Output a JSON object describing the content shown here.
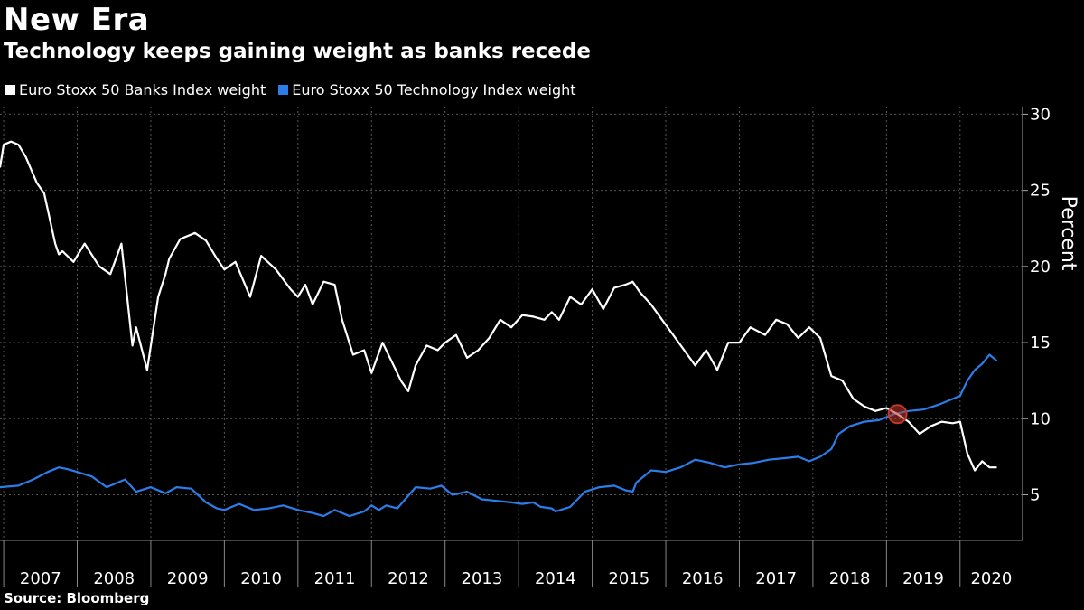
{
  "title": "New Era",
  "subtitle": "Technology keeps gaining weight as banks recede",
  "source": "Source: Bloomberg",
  "chart_data": {
    "type": "line",
    "ylabel": "Percent",
    "ylim": [
      2,
      30.5
    ],
    "yticks": [
      5,
      10,
      15,
      20,
      25,
      30
    ],
    "xlim": [
      2006.95,
      2020.85
    ],
    "xticks": [
      "2007",
      "2008",
      "2009",
      "2010",
      "2011",
      "2012",
      "2013",
      "2014",
      "2015",
      "2016",
      "2017",
      "2018",
      "2019",
      "2020"
    ],
    "grid": true,
    "legend_position": "top-left",
    "highlight": {
      "x": 2019.15,
      "y": 10.3,
      "color": "#c0392b"
    },
    "series": [
      {
        "name": "Euro Stoxx 50 Banks Index weight",
        "color": "#ffffff",
        "x": [
          2006.95,
          2007.0,
          2007.1,
          2007.2,
          2007.3,
          2007.45,
          2007.55,
          2007.7,
          2007.75,
          2007.8,
          2007.95,
          2008.1,
          2008.3,
          2008.45,
          2008.6,
          2008.75,
          2008.8,
          2008.95,
          2009.1,
          2009.2,
          2009.25,
          2009.4,
          2009.6,
          2009.75,
          2009.9,
          2010.0,
          2010.15,
          2010.35,
          2010.5,
          2010.7,
          2010.9,
          2011.0,
          2011.1,
          2011.2,
          2011.35,
          2011.5,
          2011.6,
          2011.75,
          2011.9,
          2012.0,
          2012.15,
          2012.3,
          2012.4,
          2012.5,
          2012.6,
          2012.75,
          2012.9,
          2013.0,
          2013.15,
          2013.3,
          2013.45,
          2013.6,
          2013.75,
          2013.9,
          2014.05,
          2014.2,
          2014.35,
          2014.45,
          2014.55,
          2014.7,
          2014.85,
          2015.0,
          2015.15,
          2015.3,
          2015.45,
          2015.55,
          2015.65,
          2015.8,
          2015.95,
          2016.1,
          2016.25,
          2016.4,
          2016.55,
          2016.7,
          2016.85,
          2017.0,
          2017.15,
          2017.35,
          2017.5,
          2017.65,
          2017.8,
          2017.95,
          2018.1,
          2018.25,
          2018.4,
          2018.55,
          2018.7,
          2018.85,
          2019.0,
          2019.15,
          2019.3,
          2019.45,
          2019.6,
          2019.75,
          2019.9,
          2020.0,
          2020.1,
          2020.2,
          2020.3,
          2020.4,
          2020.5
        ],
        "values": [
          26.5,
          28.0,
          28.2,
          28.0,
          27.2,
          25.5,
          24.8,
          21.5,
          20.8,
          21.0,
          20.3,
          21.5,
          20.0,
          19.5,
          21.5,
          14.8,
          16.0,
          13.2,
          18.0,
          19.5,
          20.5,
          21.8,
          22.2,
          21.7,
          20.5,
          19.8,
          20.3,
          18.0,
          20.7,
          19.8,
          18.5,
          18.0,
          18.8,
          17.5,
          19.0,
          18.8,
          16.5,
          14.2,
          14.5,
          13.0,
          15.0,
          13.5,
          12.5,
          11.8,
          13.5,
          14.8,
          14.5,
          15.0,
          15.5,
          14.0,
          14.5,
          15.3,
          16.5,
          16.0,
          16.8,
          16.7,
          16.5,
          17.0,
          16.5,
          18.0,
          17.5,
          18.5,
          17.2,
          18.6,
          18.8,
          19.0,
          18.3,
          17.5,
          16.5,
          15.5,
          14.5,
          13.5,
          14.5,
          13.2,
          15.0,
          15.0,
          16.0,
          15.5,
          16.5,
          16.2,
          15.3,
          16.0,
          15.3,
          12.8,
          12.5,
          11.3,
          10.8,
          10.5,
          10.7,
          10.3,
          9.8,
          9.0,
          9.5,
          9.8,
          9.7,
          9.8,
          7.7,
          6.6,
          7.2,
          6.8,
          6.8
        ]
      },
      {
        "name": "Euro Stoxx 50 Technology Index weight",
        "color": "#2b7de9",
        "x": [
          2006.95,
          2007.2,
          2007.4,
          2007.6,
          2007.75,
          2007.85,
          2008.0,
          2008.2,
          2008.4,
          2008.55,
          2008.65,
          2008.8,
          2009.0,
          2009.2,
          2009.35,
          2009.55,
          2009.75,
          2009.9,
          2010.0,
          2010.2,
          2010.4,
          2010.6,
          2010.8,
          2011.0,
          2011.2,
          2011.35,
          2011.5,
          2011.7,
          2011.9,
          2012.0,
          2012.1,
          2012.2,
          2012.35,
          2012.6,
          2012.8,
          2012.95,
          2013.1,
          2013.3,
          2013.5,
          2013.7,
          2013.9,
          2014.05,
          2014.2,
          2014.3,
          2014.45,
          2014.5,
          2014.7,
          2014.9,
          2015.1,
          2015.3,
          2015.45,
          2015.55,
          2015.6,
          2015.8,
          2016.0,
          2016.2,
          2016.4,
          2016.6,
          2016.8,
          2017.0,
          2017.2,
          2017.4,
          2017.6,
          2017.8,
          2017.95,
          2018.1,
          2018.25,
          2018.35,
          2018.5,
          2018.7,
          2018.9,
          2019.1,
          2019.3,
          2019.5,
          2019.7,
          2019.85,
          2020.0,
          2020.1,
          2020.2,
          2020.3,
          2020.4,
          2020.5
        ],
        "values": [
          5.5,
          5.6,
          6.0,
          6.5,
          6.8,
          6.7,
          6.5,
          6.2,
          5.5,
          5.8,
          6.0,
          5.2,
          5.5,
          5.1,
          5.5,
          5.4,
          4.5,
          4.1,
          4.0,
          4.4,
          4.0,
          4.1,
          4.3,
          4.0,
          3.8,
          3.6,
          4.0,
          3.6,
          3.9,
          4.3,
          4.0,
          4.3,
          4.1,
          5.5,
          5.4,
          5.6,
          5.0,
          5.2,
          4.7,
          4.6,
          4.5,
          4.4,
          4.5,
          4.2,
          4.1,
          3.9,
          4.2,
          5.2,
          5.5,
          5.6,
          5.3,
          5.2,
          5.8,
          6.6,
          6.5,
          6.8,
          7.3,
          7.1,
          6.8,
          7.0,
          7.1,
          7.3,
          7.4,
          7.5,
          7.2,
          7.5,
          8.0,
          9.0,
          9.5,
          9.8,
          9.9,
          10.3,
          10.5,
          10.6,
          10.9,
          11.2,
          11.5,
          12.5,
          13.2,
          13.6,
          14.2,
          13.8
        ]
      }
    ]
  }
}
